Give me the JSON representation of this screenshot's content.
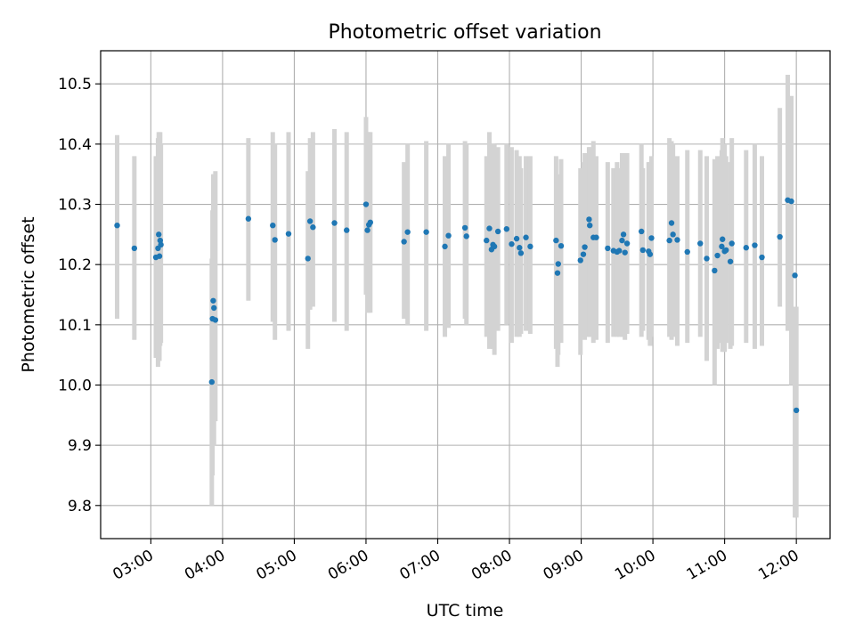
{
  "chart_data": {
    "type": "scatter",
    "title": "Photometric offset variation",
    "xlabel": "UTC time",
    "ylabel": "Photometric offset",
    "x_ticks": [
      "03:00",
      "04:00",
      "05:00",
      "06:00",
      "07:00",
      "08:00",
      "09:00",
      "10:00",
      "11:00",
      "12:00"
    ],
    "x_tick_values": [
      3,
      4,
      5,
      6,
      7,
      8,
      9,
      10,
      11,
      12
    ],
    "y_ticks": [
      "9.8",
      "9.9",
      "10.0",
      "10.1",
      "10.2",
      "10.3",
      "10.4",
      "10.5"
    ],
    "y_tick_values": [
      9.8,
      9.9,
      10.0,
      10.1,
      10.2,
      10.3,
      10.4,
      10.5
    ],
    "xlim": [
      2.3,
      12.47
    ],
    "ylim": [
      9.745,
      10.555
    ],
    "grid": true,
    "colors": {
      "point": "#1f77b4",
      "errorbar": "#d3d3d3",
      "grid": "#b0b0b0",
      "axis": "#000000"
    },
    "series": [
      {
        "x": [
          2.53,
          2.77,
          3.07,
          3.1,
          3.11,
          3.12,
          3.13,
          3.14,
          3.85,
          3.86,
          3.87,
          3.88,
          3.9,
          4.36,
          4.7,
          4.73,
          4.92,
          5.19,
          5.22,
          5.26,
          5.56,
          5.73,
          6.0,
          6.02,
          6.04,
          6.06,
          6.53,
          6.58,
          6.84,
          7.1,
          7.15,
          7.38,
          7.4,
          7.68,
          7.72,
          7.75,
          7.77,
          7.79,
          7.84,
          7.96,
          8.03,
          8.1,
          8.14,
          8.16,
          8.23,
          8.29,
          8.65,
          8.67,
          8.68,
          8.72,
          8.99,
          9.03,
          9.05,
          9.11,
          9.12,
          9.17,
          9.21,
          9.37,
          9.45,
          9.5,
          9.53,
          9.57,
          9.59,
          9.61,
          9.64,
          9.84,
          9.86,
          9.94,
          9.96,
          9.98,
          10.23,
          10.26,
          10.28,
          10.34,
          10.48,
          10.66,
          10.75,
          10.86,
          10.9,
          10.96,
          10.97,
          11.0,
          11.02,
          11.08,
          11.1,
          11.3,
          11.42,
          11.52,
          11.77,
          11.88,
          11.93,
          11.98
        ],
        "y": [
          10.265,
          10.227,
          10.212,
          10.227,
          10.25,
          10.214,
          10.24,
          10.233,
          10.005,
          10.11,
          10.14,
          10.128,
          10.108,
          10.276,
          10.265,
          10.241,
          10.251,
          10.21,
          10.272,
          10.262,
          10.269,
          10.257,
          10.3,
          10.257,
          10.266,
          10.27,
          10.238,
          10.254,
          10.254,
          10.23,
          10.248,
          10.261,
          10.247,
          10.24,
          10.26,
          10.225,
          10.233,
          10.23,
          10.255,
          10.259,
          10.234,
          10.243,
          10.228,
          10.219,
          10.245,
          10.23,
          10.24,
          10.186,
          10.201,
          10.231,
          10.207,
          10.217,
          10.229,
          10.275,
          10.265,
          10.245,
          10.245,
          10.227,
          10.223,
          10.221,
          10.223,
          10.24,
          10.25,
          10.22,
          10.235,
          10.255,
          10.224,
          10.222,
          10.217,
          10.244,
          10.24,
          10.269,
          10.25,
          10.241,
          10.221,
          10.235,
          10.21,
          10.19,
          10.215,
          10.23,
          10.242,
          10.222,
          10.224,
          10.205,
          10.235,
          10.228,
          10.232,
          10.212,
          10.246,
          10.307,
          10.305,
          10.182
        ],
        "err_low": [
          10.11,
          10.075,
          10.045,
          10.03,
          10.06,
          10.04,
          10.065,
          10.07,
          9.8,
          9.85,
          9.9,
          9.9,
          9.94,
          10.14,
          10.105,
          10.075,
          10.09,
          10.06,
          10.125,
          10.13,
          10.105,
          10.09,
          10.15,
          10.12,
          10.12,
          10.12,
          10.11,
          10.1,
          10.09,
          10.08,
          10.095,
          10.11,
          10.1,
          10.08,
          10.06,
          10.07,
          10.06,
          10.05,
          10.09,
          10.1,
          10.07,
          10.08,
          10.08,
          10.085,
          10.09,
          10.085,
          10.06,
          10.03,
          10.05,
          10.07,
          10.05,
          10.08,
          10.075,
          10.08,
          10.08,
          10.07,
          10.075,
          10.07,
          10.08,
          10.08,
          10.08,
          10.08,
          10.08,
          10.075,
          10.085,
          10.08,
          10.09,
          10.075,
          10.065,
          10.08,
          10.08,
          10.075,
          10.08,
          10.065,
          10.07,
          10.08,
          10.04,
          10.0,
          10.06,
          10.07,
          10.055,
          10.055,
          10.07,
          10.06,
          10.065,
          10.07,
          10.06,
          10.065,
          10.13,
          10.09,
          10.0,
          9.78
        ],
        "err_high": [
          10.415,
          10.38,
          10.38,
          10.41,
          10.42,
          10.4,
          10.42,
          10.4,
          10.21,
          10.29,
          10.35,
          10.35,
          10.355,
          10.41,
          10.42,
          10.4,
          10.42,
          10.355,
          10.41,
          10.42,
          10.425,
          10.42,
          10.445,
          10.42,
          10.42,
          10.42,
          10.37,
          10.4,
          10.405,
          10.38,
          10.4,
          10.405,
          10.4,
          10.38,
          10.42,
          10.4,
          10.4,
          10.4,
          10.395,
          10.4,
          10.395,
          10.39,
          10.38,
          10.36,
          10.38,
          10.38,
          10.38,
          10.33,
          10.35,
          10.375,
          10.36,
          10.37,
          10.385,
          10.395,
          10.395,
          10.405,
          10.38,
          10.37,
          10.36,
          10.37,
          10.36,
          10.385,
          10.385,
          10.365,
          10.385,
          10.4,
          10.36,
          10.37,
          10.37,
          10.38,
          10.41,
          10.405,
          10.4,
          10.38,
          10.39,
          10.39,
          10.38,
          10.375,
          10.38,
          10.39,
          10.41,
          10.4,
          10.38,
          10.37,
          10.41,
          10.39,
          10.4,
          10.38,
          10.46,
          10.515,
          10.48,
          10.13
        ]
      }
    ],
    "extra_point": {
      "x": 12.0,
      "y": 9.958,
      "err_low": 9.78,
      "err_high": 10.13
    }
  }
}
